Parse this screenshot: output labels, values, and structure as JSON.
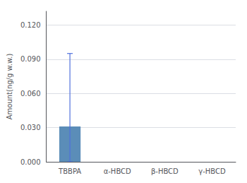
{
  "chart_data": {
    "type": "bar",
    "categories": [
      "TBBPA",
      "α-HBCD",
      "β-HBCD",
      "γ-HBCD"
    ],
    "values": [
      0.031,
      0.0,
      0.0,
      0.0
    ],
    "error_lower": [
      0.031,
      0.0,
      0.0,
      0.0
    ],
    "error_upper": [
      0.064,
      0.0,
      0.0,
      0.0
    ],
    "color": "#5b8db8",
    "ylabel": "Amount(ng/g w.w.)",
    "ylim": [
      0.0,
      0.132
    ],
    "yticks": [
      {
        "value": 0.0,
        "label": "0.000"
      },
      {
        "value": 0.03,
        "label": "0.030"
      },
      {
        "value": 0.06,
        "label": "0.060"
      },
      {
        "value": 0.09,
        "label": "0.090"
      },
      {
        "value": 0.12,
        "label": "0.120"
      }
    ],
    "grid": true
  }
}
